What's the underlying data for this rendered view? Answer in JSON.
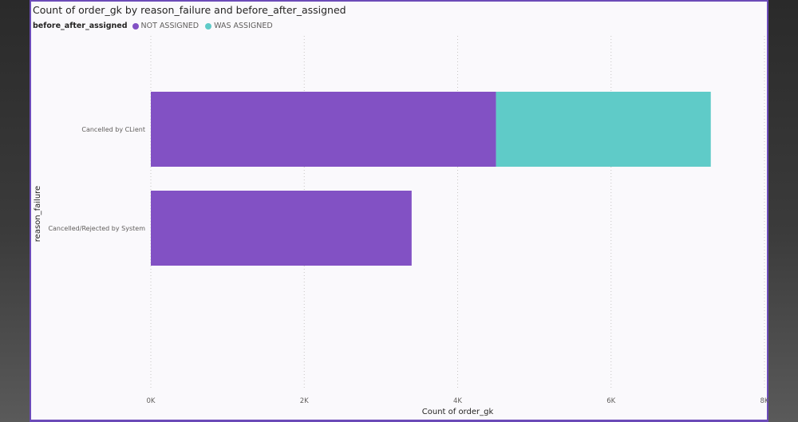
{
  "chart_data": {
    "type": "bar",
    "orientation": "horizontal",
    "stacked": true,
    "title": "Count of order_gk by reason_failure and before_after_assigned",
    "legend_title": "before_after_assigned",
    "legend_position": "top-left",
    "categories": [
      "Cancelled by CLient",
      "Cancelled/Rejected by System"
    ],
    "series": [
      {
        "name": "NOT ASSIGNED",
        "color": "#8251c4",
        "values": [
          4500,
          3400
        ]
      },
      {
        "name": "WAS ASSIGNED",
        "color": "#5fcbc8",
        "values": [
          2800,
          0
        ]
      }
    ],
    "xlabel": "Count of order_gk",
    "ylabel": "reason_failure",
    "xlim": [
      0,
      8000
    ],
    "x_ticks": [
      {
        "value": 0,
        "label": "0K"
      },
      {
        "value": 2000,
        "label": "2K"
      },
      {
        "value": 4000,
        "label": "4K"
      },
      {
        "value": 6000,
        "label": "6K"
      },
      {
        "value": 8000,
        "label": "8K"
      }
    ],
    "grid": "vertical-dotted"
  }
}
